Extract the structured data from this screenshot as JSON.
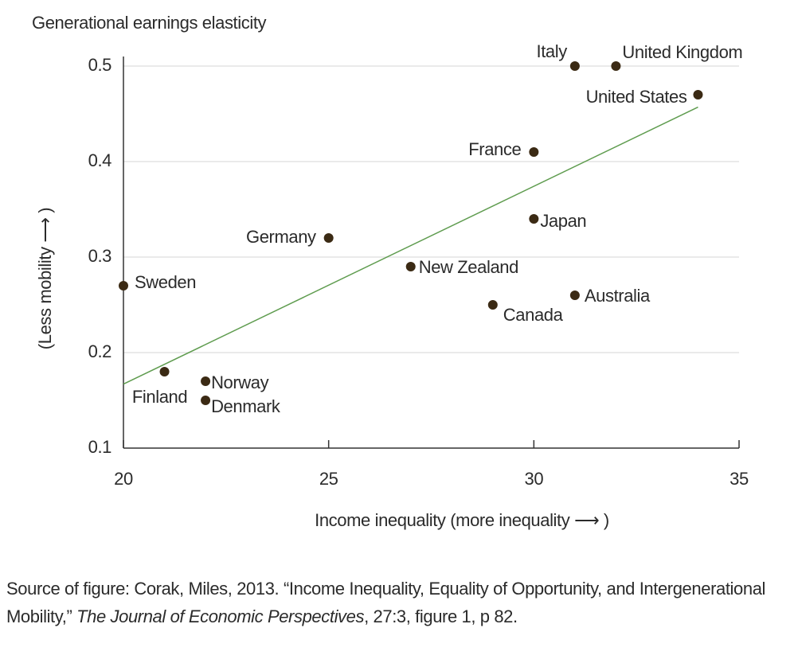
{
  "chart_data": {
    "type": "scatter",
    "y_title": "Generational earnings elasticity",
    "y_label": "(Less mobility ⟶ )",
    "x_label": "Income inequality (more inequality ⟶ )",
    "labels": [
      "Italy",
      "United Kingdom",
      "United States",
      "France",
      "Japan",
      "Germany",
      "New Zealand",
      "Sweden",
      "Canada",
      "Australia",
      "Finland",
      "Norway",
      "Denmark"
    ],
    "x": [
      31,
      32,
      34,
      30,
      30,
      25,
      27,
      20,
      29,
      31,
      21,
      22,
      22
    ],
    "values": [
      0.5,
      0.5,
      0.47,
      0.41,
      0.34,
      0.32,
      0.29,
      0.27,
      0.25,
      0.26,
      0.18,
      0.17,
      0.15
    ],
    "color": "#3b2a14",
    "trend_line": {
      "x": [
        20,
        34
      ],
      "values": [
        0.167,
        0.457
      ],
      "color": "#5f9c4f"
    },
    "xlim": [
      20,
      35
    ],
    "xticks": [
      20,
      25,
      30,
      35
    ],
    "ylim": [
      0.1,
      0.5
    ],
    "yticks": [
      0.1,
      0.2,
      0.3,
      0.4,
      0.5
    ],
    "grid": true
  },
  "caption": [
    "Source of figure: Corak, Miles, 2013. “Income Inequality, Equality of Opportunity, and Intergenerational Mobility,” ",
    "The Journal of Economic Perspectives",
    ", 27:3, figure 1, p 82."
  ]
}
